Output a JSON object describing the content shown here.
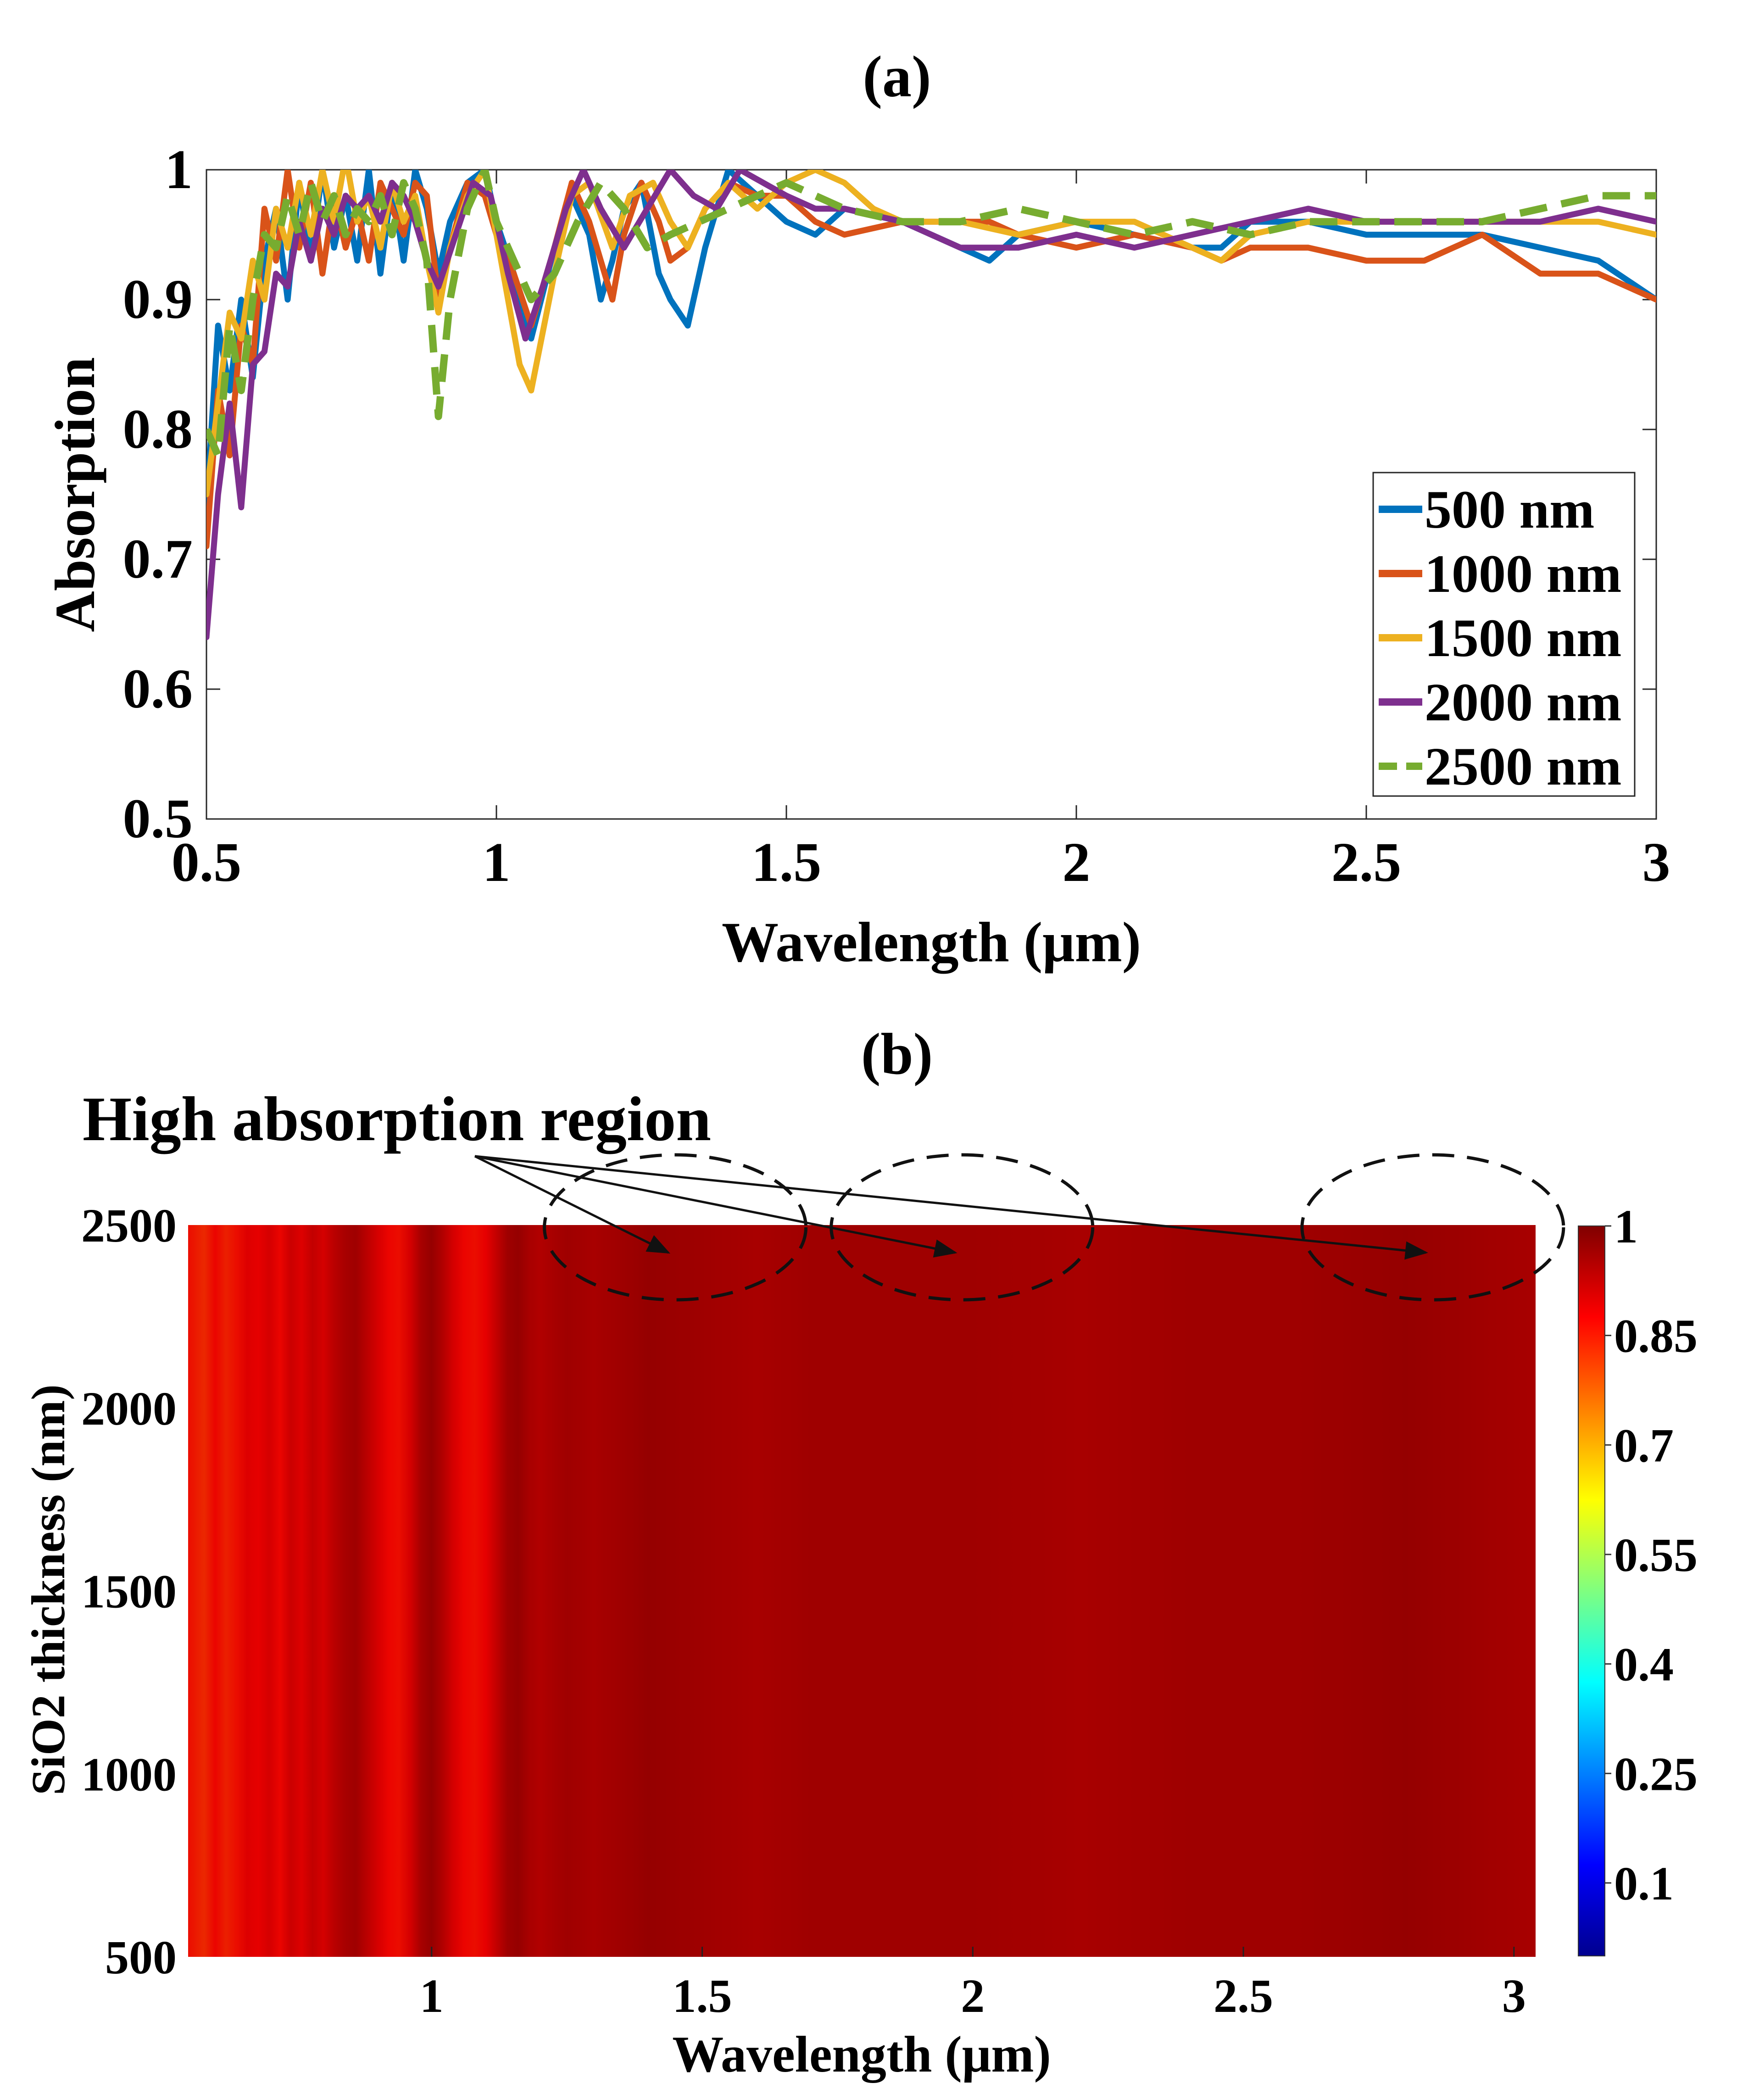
{
  "chart_data": [
    {
      "panel": "(a)",
      "type": "line",
      "xlabel": "Wavelength (μm)",
      "ylabel": "Absorption",
      "xlim": [
        0.5,
        3
      ],
      "ylim": [
        0.5,
        1
      ],
      "xticks": [
        "0.5",
        "1",
        "1.5",
        "2",
        "2.5",
        "3"
      ],
      "yticks": [
        "0.5",
        "0.6",
        "0.7",
        "0.8",
        "0.9",
        "1"
      ],
      "legend_position": "right-center",
      "grid": false,
      "series": [
        {
          "name": "500 nm",
          "color": "#0072BD",
          "dash": false,
          "x": [
            0.5,
            0.52,
            0.54,
            0.56,
            0.58,
            0.6,
            0.62,
            0.64,
            0.66,
            0.68,
            0.7,
            0.72,
            0.74,
            0.76,
            0.78,
            0.8,
            0.82,
            0.84,
            0.86,
            0.88,
            0.9,
            0.92,
            0.95,
            0.98,
            1.0,
            1.03,
            1.06,
            1.1,
            1.13,
            1.16,
            1.18,
            1.2,
            1.22,
            1.25,
            1.28,
            1.3,
            1.33,
            1.36,
            1.4,
            1.45,
            1.5,
            1.55,
            1.6,
            1.7,
            1.8,
            1.85,
            1.9,
            2.0,
            2.1,
            2.2,
            2.25,
            2.3,
            2.4,
            2.5,
            2.6,
            2.7,
            2.8,
            2.9,
            3.0
          ],
          "y": [
            0.74,
            0.88,
            0.83,
            0.9,
            0.84,
            0.93,
            0.97,
            0.9,
            0.99,
            0.93,
            1.0,
            0.94,
            0.98,
            0.93,
            1.0,
            0.92,
            0.99,
            0.93,
            1.0,
            0.97,
            0.92,
            0.96,
            0.99,
            1.0,
            0.96,
            0.92,
            0.87,
            0.94,
            0.98,
            0.95,
            0.9,
            0.93,
            0.97,
            0.99,
            0.92,
            0.9,
            0.88,
            0.94,
            1.0,
            0.98,
            0.96,
            0.95,
            0.97,
            0.96,
            0.94,
            0.93,
            0.95,
            0.96,
            0.95,
            0.94,
            0.94,
            0.96,
            0.96,
            0.95,
            0.95,
            0.95,
            0.94,
            0.93,
            0.9
          ]
        },
        {
          "name": "1000 nm",
          "color": "#D95319",
          "dash": false,
          "x": [
            0.5,
            0.52,
            0.54,
            0.56,
            0.58,
            0.6,
            0.62,
            0.64,
            0.66,
            0.68,
            0.7,
            0.72,
            0.74,
            0.76,
            0.78,
            0.8,
            0.82,
            0.84,
            0.86,
            0.88,
            0.9,
            0.92,
            0.95,
            0.98,
            1.0,
            1.03,
            1.06,
            1.1,
            1.13,
            1.16,
            1.18,
            1.2,
            1.22,
            1.25,
            1.28,
            1.3,
            1.33,
            1.36,
            1.4,
            1.45,
            1.5,
            1.55,
            1.6,
            1.7,
            1.8,
            1.85,
            1.9,
            2.0,
            2.1,
            2.2,
            2.25,
            2.3,
            2.4,
            2.5,
            2.6,
            2.7,
            2.8,
            2.9,
            3.0
          ],
          "y": [
            0.71,
            0.83,
            0.78,
            0.88,
            0.85,
            0.97,
            0.93,
            1.0,
            0.94,
            0.99,
            0.92,
            0.98,
            0.94,
            0.97,
            0.93,
            0.99,
            0.97,
            0.95,
            0.99,
            0.98,
            0.9,
            0.94,
            0.99,
            0.98,
            0.95,
            0.92,
            0.88,
            0.94,
            0.99,
            0.96,
            0.93,
            0.9,
            0.95,
            0.99,
            0.96,
            0.93,
            0.94,
            0.97,
            0.99,
            0.98,
            0.98,
            0.96,
            0.95,
            0.96,
            0.96,
            0.96,
            0.95,
            0.94,
            0.95,
            0.94,
            0.93,
            0.94,
            0.94,
            0.93,
            0.93,
            0.95,
            0.92,
            0.92,
            0.9
          ]
        },
        {
          "name": "1500 nm",
          "color": "#EDB120",
          "dash": false,
          "x": [
            0.5,
            0.52,
            0.54,
            0.56,
            0.58,
            0.6,
            0.62,
            0.64,
            0.66,
            0.68,
            0.7,
            0.72,
            0.74,
            0.76,
            0.78,
            0.8,
            0.82,
            0.84,
            0.86,
            0.88,
            0.9,
            0.92,
            0.95,
            0.98,
            1.0,
            1.02,
            1.04,
            1.06,
            1.1,
            1.13,
            1.16,
            1.2,
            1.23,
            1.27,
            1.3,
            1.33,
            1.36,
            1.4,
            1.45,
            1.5,
            1.55,
            1.6,
            1.65,
            1.7,
            1.8,
            1.9,
            2.0,
            2.1,
            2.2,
            2.25,
            2.3,
            2.4,
            2.5,
            2.6,
            2.7,
            2.8,
            2.9,
            3.0
          ],
          "y": [
            0.75,
            0.82,
            0.89,
            0.87,
            0.93,
            0.9,
            0.97,
            0.94,
            0.99,
            0.95,
            1.0,
            0.96,
            1.01,
            0.96,
            0.98,
            0.94,
            0.99,
            0.96,
            0.98,
            0.93,
            0.89,
            0.94,
            0.98,
            1.0,
            0.95,
            0.9,
            0.85,
            0.83,
            0.92,
            0.98,
            0.99,
            0.94,
            0.98,
            0.99,
            0.96,
            0.94,
            0.97,
            0.99,
            0.97,
            0.99,
            1.0,
            0.99,
            0.97,
            0.96,
            0.96,
            0.95,
            0.96,
            0.96,
            0.94,
            0.93,
            0.95,
            0.96,
            0.96,
            0.96,
            0.96,
            0.96,
            0.96,
            0.95
          ]
        },
        {
          "name": "2000 nm",
          "color": "#7E2F8E",
          "dash": false,
          "x": [
            0.5,
            0.52,
            0.54,
            0.56,
            0.58,
            0.6,
            0.62,
            0.64,
            0.66,
            0.68,
            0.7,
            0.72,
            0.74,
            0.76,
            0.78,
            0.8,
            0.82,
            0.84,
            0.86,
            0.88,
            0.9,
            0.93,
            0.96,
            0.99,
            1.02,
            1.05,
            1.08,
            1.12,
            1.15,
            1.18,
            1.22,
            1.26,
            1.3,
            1.34,
            1.38,
            1.42,
            1.46,
            1.5,
            1.55,
            1.6,
            1.7,
            1.8,
            1.9,
            2.0,
            2.1,
            2.2,
            2.3,
            2.4,
            2.5,
            2.6,
            2.7,
            2.8,
            2.9,
            3.0
          ],
          "y": [
            0.64,
            0.75,
            0.82,
            0.74,
            0.85,
            0.86,
            0.92,
            0.91,
            0.96,
            0.93,
            0.97,
            0.95,
            0.98,
            0.97,
            0.98,
            0.96,
            0.99,
            0.98,
            0.96,
            0.93,
            0.91,
            0.95,
            0.99,
            0.98,
            0.92,
            0.87,
            0.91,
            0.97,
            1.0,
            0.97,
            0.94,
            0.97,
            1.0,
            0.98,
            0.97,
            1.0,
            0.99,
            0.98,
            0.97,
            0.97,
            0.96,
            0.94,
            0.94,
            0.95,
            0.94,
            0.95,
            0.96,
            0.97,
            0.96,
            0.96,
            0.96,
            0.96,
            0.97,
            0.96
          ]
        },
        {
          "name": "2500 nm",
          "color": "#77AC30",
          "dash": true,
          "x": [
            0.5,
            0.52,
            0.54,
            0.56,
            0.58,
            0.6,
            0.62,
            0.64,
            0.66,
            0.68,
            0.7,
            0.72,
            0.74,
            0.76,
            0.78,
            0.8,
            0.82,
            0.84,
            0.86,
            0.88,
            0.9,
            0.92,
            0.95,
            0.98,
            1.0,
            1.03,
            1.06,
            1.1,
            1.14,
            1.18,
            1.22,
            1.26,
            1.3,
            1.35,
            1.4,
            1.45,
            1.5,
            1.6,
            1.7,
            1.8,
            1.9,
            2.0,
            2.1,
            2.2,
            2.3,
            2.4,
            2.5,
            2.6,
            2.7,
            2.8,
            2.9,
            3.0
          ],
          "y": [
            0.8,
            0.78,
            0.88,
            0.83,
            0.9,
            0.95,
            0.94,
            0.98,
            0.95,
            0.99,
            0.96,
            0.98,
            0.95,
            0.97,
            0.96,
            0.98,
            0.95,
            0.99,
            0.97,
            0.93,
            0.81,
            0.9,
            0.97,
            1.0,
            0.96,
            0.93,
            0.9,
            0.92,
            0.96,
            0.99,
            0.97,
            0.94,
            0.95,
            0.96,
            0.97,
            0.98,
            0.99,
            0.97,
            0.96,
            0.96,
            0.97,
            0.96,
            0.95,
            0.96,
            0.95,
            0.96,
            0.96,
            0.96,
            0.96,
            0.97,
            0.98,
            0.98
          ]
        }
      ]
    },
    {
      "panel": "(b)",
      "type": "heatmap",
      "xlabel": "Wavelength (μm)",
      "ylabel": "SiO2 thickness (nm)",
      "xlim": [
        0.55,
        3.04
      ],
      "ylim": [
        500,
        2500
      ],
      "xticks": [
        "1",
        "1.5",
        "2",
        "2.5",
        "3"
      ],
      "yticks": [
        "500",
        "1000",
        "1500",
        "2000",
        "2500"
      ],
      "colorbar": {
        "range": [
          0,
          1
        ],
        "ticks": [
          "0.1",
          "0.25",
          "0.4",
          "0.55",
          "0.7",
          "0.85",
          "1"
        ],
        "colormap": "jet"
      },
      "annotation": "High absorption region",
      "highlighted_regions_um": [
        1.45,
        1.98,
        2.85
      ],
      "band_profile": {
        "x": [
          0.55,
          0.58,
          0.6,
          0.62,
          0.64,
          0.66,
          0.68,
          0.7,
          0.72,
          0.74,
          0.76,
          0.78,
          0.8,
          0.82,
          0.84,
          0.86,
          0.88,
          0.9,
          0.92,
          0.94,
          0.96,
          0.98,
          1.0,
          1.02,
          1.04,
          1.06,
          1.08,
          1.1,
          1.12,
          1.14,
          1.16,
          1.18,
          1.2,
          1.25,
          1.3,
          1.35,
          1.4,
          1.5,
          1.6,
          1.7,
          1.8,
          2.0,
          2.2,
          2.4,
          2.6,
          2.8,
          3.04
        ],
        "absorption": [
          0.86,
          0.83,
          0.87,
          0.84,
          0.86,
          0.89,
          0.88,
          0.9,
          0.87,
          0.91,
          0.89,
          0.92,
          0.9,
          0.93,
          0.95,
          0.96,
          0.93,
          0.9,
          0.87,
          0.86,
          0.9,
          0.95,
          0.97,
          0.94,
          0.9,
          0.87,
          0.86,
          0.88,
          0.92,
          0.96,
          0.97,
          0.95,
          0.94,
          0.96,
          0.95,
          0.96,
          0.97,
          0.96,
          0.95,
          0.96,
          0.96,
          0.96,
          0.95,
          0.96,
          0.96,
          0.97,
          0.95
        ]
      }
    }
  ]
}
